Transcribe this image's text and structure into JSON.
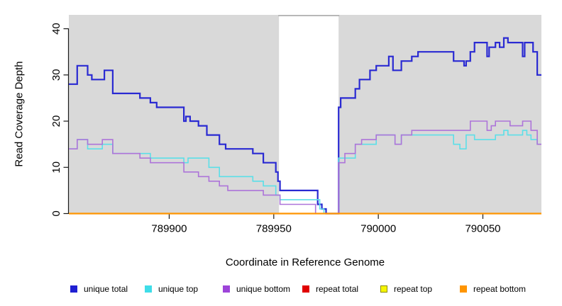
{
  "chart_data": {
    "type": "line",
    "title": "",
    "xlabel": "Coordinate in Reference Genome",
    "ylabel": "Read Coverage Depth",
    "xlim": [
      789852,
      790078
    ],
    "ylim": [
      0,
      43
    ],
    "x_ticks": [
      789900,
      789950,
      790000,
      790050
    ],
    "y_ticks": [
      0,
      10,
      20,
      30,
      40
    ],
    "grid": false,
    "panel_bg": "#d9d9d9",
    "highlight_band": {
      "start": 789952.5,
      "end": 789981,
      "color": "#ffffff",
      "edge_color": "#a8a8a8"
    },
    "legend_position": "bottom",
    "series": [
      {
        "name": "unique total",
        "color": "#2a2ad2",
        "width": 2.2,
        "steps": [
          [
            789852,
            28
          ],
          [
            789856,
            32
          ],
          [
            789861,
            30
          ],
          [
            789863,
            29
          ],
          [
            789869,
            31
          ],
          [
            789873,
            26
          ],
          [
            789886,
            25
          ],
          [
            789891,
            24
          ],
          [
            789894,
            23
          ],
          [
            789907,
            20
          ],
          [
            789908,
            21
          ],
          [
            789910,
            20
          ],
          [
            789914,
            19
          ],
          [
            789918,
            17
          ],
          [
            789924,
            15
          ],
          [
            789927,
            14
          ],
          [
            789940,
            13
          ],
          [
            789945,
            11
          ],
          [
            789951,
            9
          ],
          [
            789952,
            7
          ],
          [
            789953,
            5
          ],
          [
            789971,
            2
          ],
          [
            789973,
            1
          ],
          [
            789975,
            0
          ],
          [
            789981,
            23
          ],
          [
            789982,
            25
          ],
          [
            789989,
            27
          ],
          [
            789991,
            29
          ],
          [
            789996,
            31
          ],
          [
            789999,
            32
          ],
          [
            790005,
            34
          ],
          [
            790007,
            31
          ],
          [
            790011,
            33
          ],
          [
            790016,
            34
          ],
          [
            790019,
            35
          ],
          [
            790036,
            33
          ],
          [
            790041,
            32
          ],
          [
            790042,
            33
          ],
          [
            790044,
            35
          ],
          [
            790046,
            37
          ],
          [
            790052,
            34
          ],
          [
            790053,
            36
          ],
          [
            790056,
            37
          ],
          [
            790058,
            36
          ],
          [
            790060,
            38
          ],
          [
            790062,
            37
          ],
          [
            790069,
            34
          ],
          [
            790070,
            37
          ],
          [
            790074,
            35
          ],
          [
            790076,
            30
          ]
        ]
      },
      {
        "name": "unique top",
        "color": "#5cdfe8",
        "width": 1.6,
        "steps": [
          [
            789852,
            14
          ],
          [
            789856,
            16
          ],
          [
            789861,
            14
          ],
          [
            789868,
            15
          ],
          [
            789873,
            13
          ],
          [
            789891,
            12
          ],
          [
            789907,
            11
          ],
          [
            789909,
            12
          ],
          [
            789919,
            10
          ],
          [
            789924,
            8
          ],
          [
            789940,
            7
          ],
          [
            789945,
            6
          ],
          [
            789951,
            4
          ],
          [
            789953,
            3
          ],
          [
            789972,
            1
          ],
          [
            789974,
            0
          ],
          [
            789981,
            12
          ],
          [
            789989,
            15
          ],
          [
            789999,
            17
          ],
          [
            790008,
            15
          ],
          [
            790011,
            17
          ],
          [
            790036,
            15
          ],
          [
            790039,
            14
          ],
          [
            790042,
            17
          ],
          [
            790046,
            16
          ],
          [
            790056,
            17
          ],
          [
            790060,
            18
          ],
          [
            790062,
            17
          ],
          [
            790069,
            18
          ],
          [
            790071,
            17
          ],
          [
            790073,
            16
          ],
          [
            790076,
            15
          ]
        ]
      },
      {
        "name": "unique bottom",
        "color": "#ad74d9",
        "width": 1.6,
        "steps": [
          [
            789852,
            14
          ],
          [
            789856,
            16
          ],
          [
            789861,
            15
          ],
          [
            789868,
            16
          ],
          [
            789873,
            13
          ],
          [
            789886,
            12
          ],
          [
            789891,
            11
          ],
          [
            789907,
            9
          ],
          [
            789914,
            8
          ],
          [
            789919,
            7
          ],
          [
            789924,
            6
          ],
          [
            789928,
            5
          ],
          [
            789945,
            4
          ],
          [
            789953,
            2
          ],
          [
            789970,
            0
          ],
          [
            789981,
            11
          ],
          [
            789984,
            13
          ],
          [
            789989,
            15
          ],
          [
            789992,
            16
          ],
          [
            789999,
            17
          ],
          [
            790008,
            15
          ],
          [
            790011,
            17
          ],
          [
            790016,
            18
          ],
          [
            790044,
            20
          ],
          [
            790052,
            18
          ],
          [
            790054,
            19
          ],
          [
            790056,
            20
          ],
          [
            790063,
            19
          ],
          [
            790069,
            20
          ],
          [
            790073,
            18
          ],
          [
            790076,
            15
          ]
        ]
      },
      {
        "name": "repeat total",
        "color": "#e00000",
        "width": 1.6,
        "steps": [
          [
            789852,
            0
          ]
        ]
      },
      {
        "name": "repeat top",
        "color": "#f5f500",
        "width": 1.6,
        "steps": [
          [
            789852,
            0
          ]
        ]
      },
      {
        "name": "repeat bottom",
        "color": "#ff9500",
        "width": 2.2,
        "steps": [
          [
            789852,
            0
          ]
        ]
      }
    ]
  },
  "legend": {
    "items": [
      {
        "label": "unique total",
        "color": "#1f1fd2"
      },
      {
        "label": "unique top",
        "color": "#3fdde8"
      },
      {
        "label": "unique bottom",
        "color": "#9d44d9"
      },
      {
        "label": "repeat total",
        "color": "#e00000"
      },
      {
        "label": "repeat top",
        "color": "#f5f500",
        "border": "#8b8b00"
      },
      {
        "label": "repeat bottom",
        "color": "#ff9500"
      }
    ]
  }
}
